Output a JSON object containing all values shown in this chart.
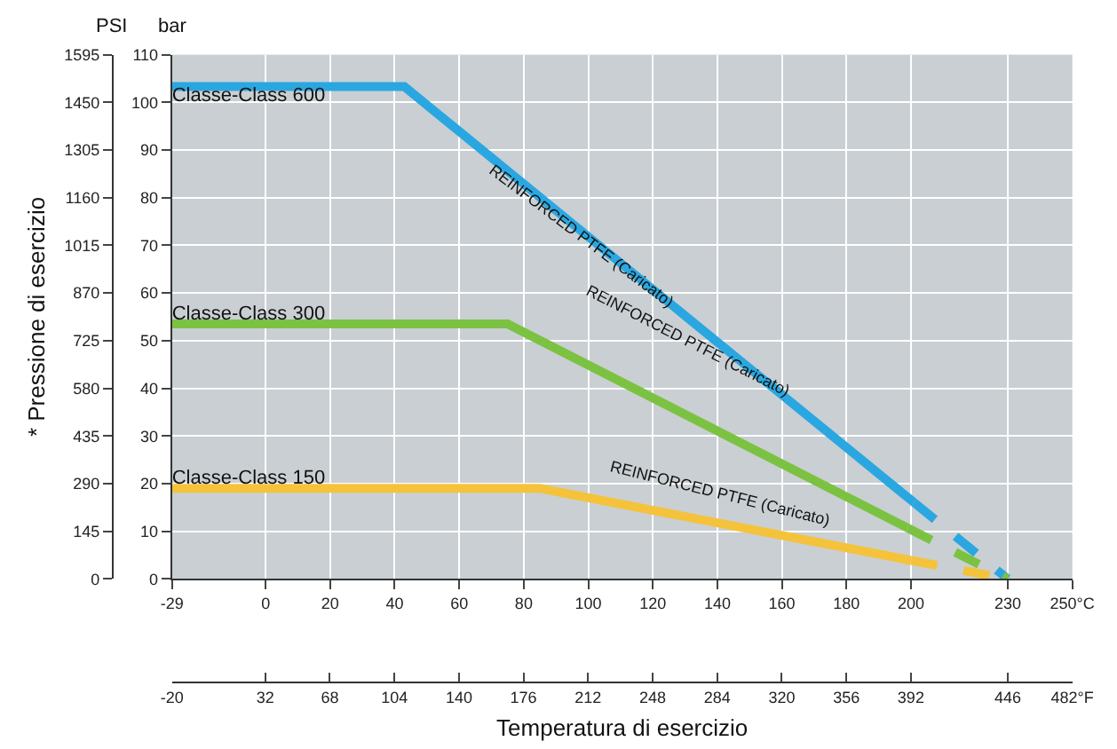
{
  "chart_data": {
    "type": "line",
    "xlabel": "Temperatura di esercizio",
    "ylabel": "* Pressione di esercizio",
    "xlim": [
      -29,
      250
    ],
    "xticks": [
      -29,
      0,
      20,
      40,
      60,
      80,
      100,
      120,
      140,
      160,
      180,
      200,
      230,
      {
        "value": 250,
        "label": "250°C"
      }
    ],
    "x2lim": [
      -20,
      482
    ],
    "x2ticks": [
      -20,
      32,
      68,
      104,
      140,
      176,
      212,
      248,
      284,
      320,
      356,
      392,
      446,
      {
        "value": 482,
        "label": "482°F"
      }
    ],
    "ylim": [
      0,
      1595
    ],
    "yticks": [
      0,
      145,
      290,
      435,
      580,
      725,
      870,
      1015,
      1160,
      1305,
      1450,
      1595
    ],
    "y2lim": [
      0,
      110
    ],
    "y2ticks": [
      0,
      10,
      20,
      30,
      40,
      50,
      60,
      70,
      80,
      90,
      100,
      110
    ],
    "grid": true,
    "legend": false,
    "marker": "none",
    "series": [
      {
        "name": "Classe-Class 600",
        "color": "#2aa7e0",
        "axis": "y2",
        "x": [
          -29,
          43,
          201
        ],
        "values": [
          103.3,
          103.3,
          16
        ],
        "line_style": "solid"
      },
      {
        "color": "#2aa7e0",
        "axis": "y2",
        "x": [
          201,
          230
        ],
        "values": [
          16,
          0
        ],
        "line_style": "dashed"
      },
      {
        "name": "Classe-Class 300",
        "color": "#7cc242",
        "axis": "y2",
        "x": [
          -29,
          75,
          199
        ],
        "values": [
          53.5,
          53.5,
          10.7
        ],
        "line_style": "solid"
      },
      {
        "color": "#7cc242",
        "axis": "y2",
        "x": [
          199,
          230
        ],
        "values": [
          10.7,
          0
        ],
        "line_style": "dashed"
      },
      {
        "name": "Classe-Class 150",
        "color": "#f5c33b",
        "axis": "y2",
        "x": [
          -29,
          85,
          200
        ],
        "values": [
          19,
          19,
          3.9
        ],
        "line_style": "solid"
      },
      {
        "color": "#f5c33b",
        "axis": "y2",
        "x": [
          200,
          230
        ],
        "values": [
          3.9,
          0
        ],
        "line_style": "dashed"
      }
    ],
    "annotations": [
      "PSI",
      "bar",
      "REINFORCED PTFE (Caricato)",
      "REINFORCED PTFE (Caricato)",
      "REINFORCED PTFE (Caricato)"
    ]
  }
}
